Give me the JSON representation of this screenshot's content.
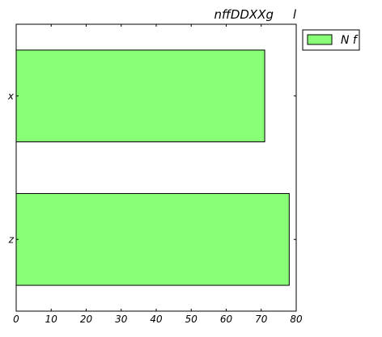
{
  "chart_data": {
    "type": "bar",
    "orientation": "horizontal",
    "title": "nffDDXXg     l",
    "xlabel": "",
    "ylabel": "",
    "categories": [
      "x",
      "z"
    ],
    "series": [
      {
        "name": "N f",
        "values": [
          71,
          78
        ],
        "color": "#88ff77"
      }
    ],
    "xlim": [
      0,
      80
    ],
    "xticks": [
      0,
      10,
      20,
      30,
      40,
      50,
      60,
      70,
      80
    ],
    "grid": false,
    "legend": "outside-top-right"
  }
}
